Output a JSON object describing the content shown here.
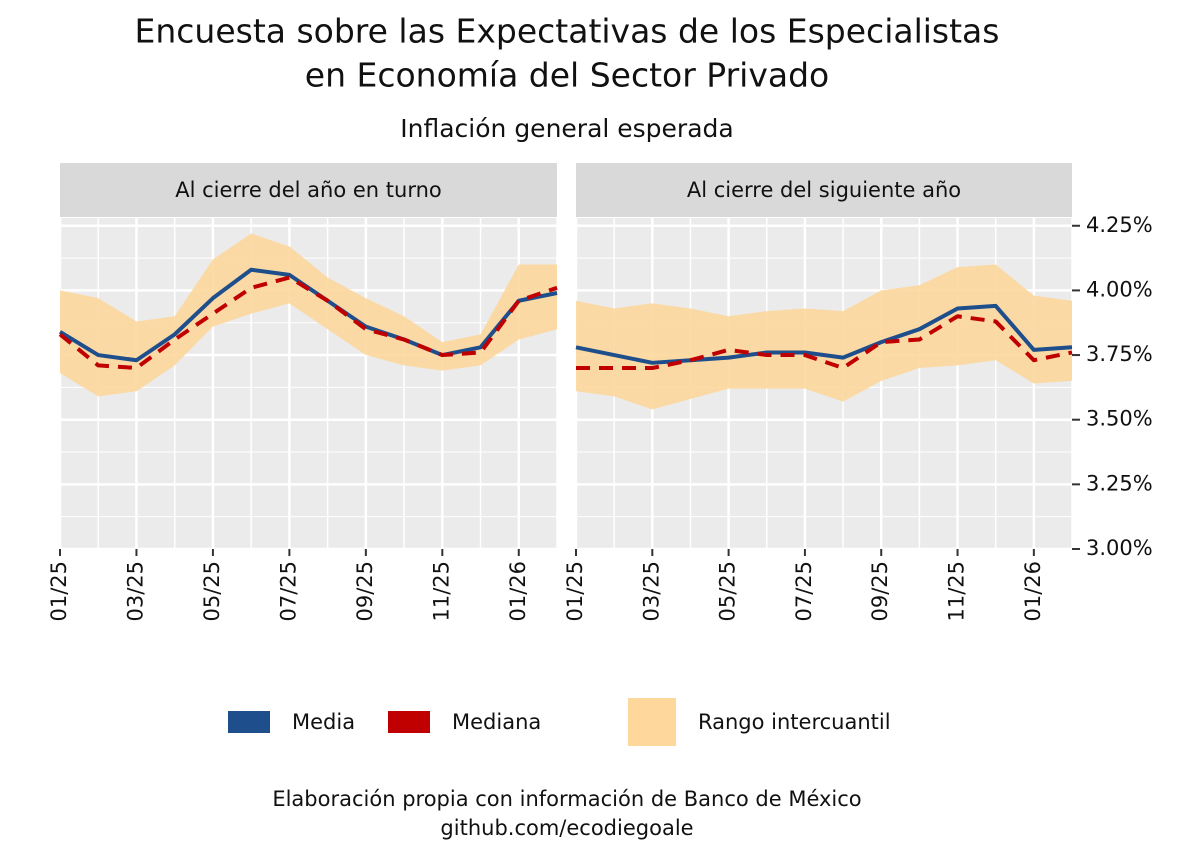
{
  "chart_data": {
    "type": "line",
    "title": [
      "Encuesta sobre las Expectativas de los Especialistas",
      "en Economía del Sector Privado"
    ],
    "subtitle": "Inflación general esperada",
    "caption": [
      "Elaboración propia con información de Banco de México",
      "github.com/ecodiegoale"
    ],
    "categories": [
      "01/25",
      null,
      "03/25",
      null,
      "05/25",
      null,
      "07/25",
      null,
      "09/25",
      null,
      "11/25",
      null,
      "01/26",
      null
    ],
    "ylim": [
      3.0,
      4.28
    ],
    "yticks": [
      {
        "value": 3.0,
        "label": "3.00%"
      },
      {
        "value": 3.25,
        "label": "3.25%"
      },
      {
        "value": 3.5,
        "label": "3.50%"
      },
      {
        "value": 3.75,
        "label": "3.75%"
      },
      {
        "value": 4.0,
        "label": "4.00%"
      },
      {
        "value": 4.25,
        "label": "4.25%"
      }
    ],
    "grid": true,
    "legend": [
      {
        "name": "Media",
        "color": "#1f4e8c"
      },
      {
        "name": "Mediana",
        "color": "#c00000"
      },
      {
        "name": "Rango intercuantil",
        "color": "#fdd79c"
      }
    ],
    "facets": [
      {
        "title": "Al cierre del año en turno",
        "series": [
          {
            "values": [
              3.84,
              3.75,
              3.73,
              3.83,
              3.97,
              4.08,
              4.06,
              3.96,
              3.86,
              3.81,
              3.75,
              3.78,
              3.96,
              3.99
            ]
          },
          {
            "values": [
              3.83,
              3.71,
              3.7,
              3.81,
              3.91,
              4.01,
              4.05,
              3.96,
              3.85,
              3.81,
              3.75,
              3.76,
              3.96,
              4.01
            ]
          }
        ],
        "band": {
          "low": [
            3.68,
            3.59,
            3.61,
            3.71,
            3.86,
            3.91,
            3.95,
            3.85,
            3.75,
            3.71,
            3.69,
            3.71,
            3.81,
            3.85
          ],
          "high": [
            4.0,
            3.97,
            3.88,
            3.9,
            4.12,
            4.22,
            4.17,
            4.05,
            3.97,
            3.9,
            3.8,
            3.83,
            4.1,
            4.1
          ]
        }
      },
      {
        "title": "Al cierre del siguiente año",
        "series": [
          {
            "values": [
              3.78,
              3.75,
              3.72,
              3.73,
              3.74,
              3.76,
              3.76,
              3.74,
              3.8,
              3.85,
              3.93,
              3.94,
              3.77,
              3.78
            ]
          },
          {
            "values": [
              3.7,
              3.7,
              3.7,
              3.73,
              3.77,
              3.75,
              3.75,
              3.7,
              3.8,
              3.81,
              3.9,
              3.88,
              3.73,
              3.76
            ]
          }
        ],
        "band": {
          "low": [
            3.61,
            3.59,
            3.54,
            3.58,
            3.62,
            3.62,
            3.62,
            3.57,
            3.65,
            3.7,
            3.71,
            3.73,
            3.64,
            3.65
          ],
          "high": [
            3.96,
            3.93,
            3.95,
            3.93,
            3.9,
            3.92,
            3.93,
            3.92,
            4.0,
            4.02,
            4.09,
            4.1,
            3.98,
            3.96
          ]
        }
      }
    ]
  }
}
